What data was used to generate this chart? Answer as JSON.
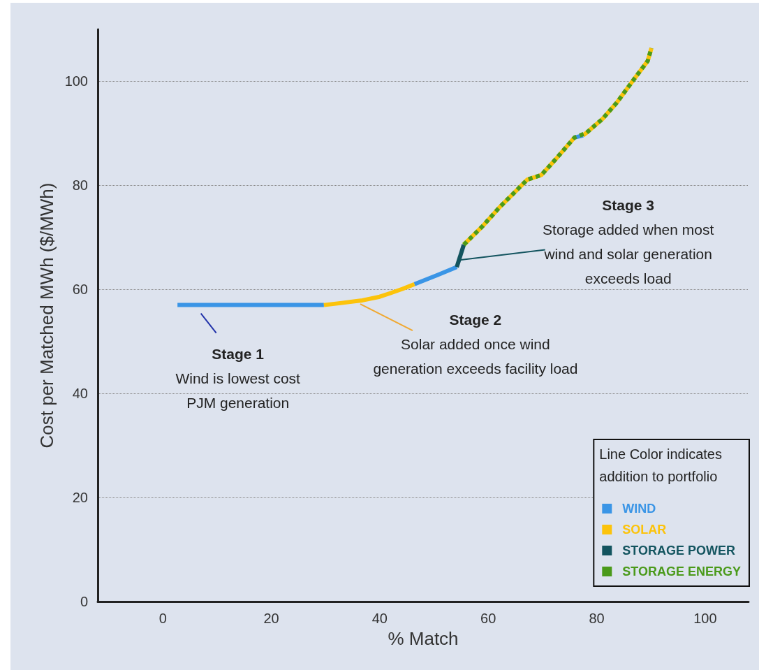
{
  "chart_data": {
    "type": "line",
    "xlabel": "% Match",
    "ylabel": "Cost per Matched MWh ($/MWh)",
    "legend_title": "Line Color indicates addition to portfolio",
    "xlim": [
      -12,
      108
    ],
    "ylim": [
      0,
      110
    ],
    "xticks": [
      0,
      20,
      40,
      60,
      80,
      100
    ],
    "yticks": [
      0,
      20,
      40,
      60,
      80,
      100
    ],
    "grid": "y",
    "legend": "bottom right",
    "marker": "none",
    "line_style": "solid",
    "series": [
      {
        "name": "WIND",
        "color": "#3a95e6",
        "x": [
          2.7,
          29.7,
          38,
          46.4,
          50.7,
          54.2,
          70,
          75.9,
          77.5
        ],
        "values": [
          57,
          57,
          null,
          61,
          62.8,
          64.3,
          null,
          89.2,
          89.6
        ]
      },
      {
        "name": "SOLAR",
        "color": "#fcc30b",
        "x": [
          29.7,
          33,
          36.8,
          40,
          42,
          44.2,
          46.4,
          50,
          55.5,
          59,
          62,
          64.6,
          67.2,
          69.8,
          72.5,
          75.9,
          77,
          77.5,
          78.1,
          81.1,
          83.7,
          86.8,
          89.4,
          90.1
        ],
        "values": [
          57,
          57.4,
          57.9,
          58.6,
          59.3,
          60.1,
          61,
          null,
          68.6,
          72.2,
          75.7,
          78.4,
          81.1,
          82,
          85.1,
          89.2,
          null,
          89.6,
          90.1,
          92.8,
          95.9,
          100.3,
          103.9,
          106.4
        ]
      },
      {
        "name": "STORAGE POWER",
        "color": "#13545f",
        "x": [
          54.2,
          55.5
        ],
        "values": [
          64.3,
          68.6
        ]
      },
      {
        "name": "STORAGE ENERGY",
        "color": "#4a9a1a",
        "line_style": "dashed",
        "x": [
          55.5,
          59,
          62,
          64.6,
          67.2,
          69.8,
          72.5,
          75.9,
          78.1,
          81.1,
          83.7,
          86.8,
          89.4,
          90.1
        ],
        "values": [
          68.6,
          72.2,
          75.7,
          78.4,
          81.1,
          82,
          85.1,
          89.2,
          90.1,
          92.8,
          95.9,
          100.3,
          103.9,
          106.4
        ]
      }
    ],
    "annotations": [
      {
        "text": "Stage 1\nWind is lowest cost\nPJM generation",
        "x": 6.5,
        "y": 57
      },
      {
        "text": "Stage 2\nSolar added once wind\ngeneration exceeds facility load",
        "x": 35.5,
        "y": 57.6
      },
      {
        "text": "Stage 3\nStorage added when most\nwind and solar generation\nexceeds load",
        "x": 54.4,
        "y": 65.6
      }
    ]
  }
}
